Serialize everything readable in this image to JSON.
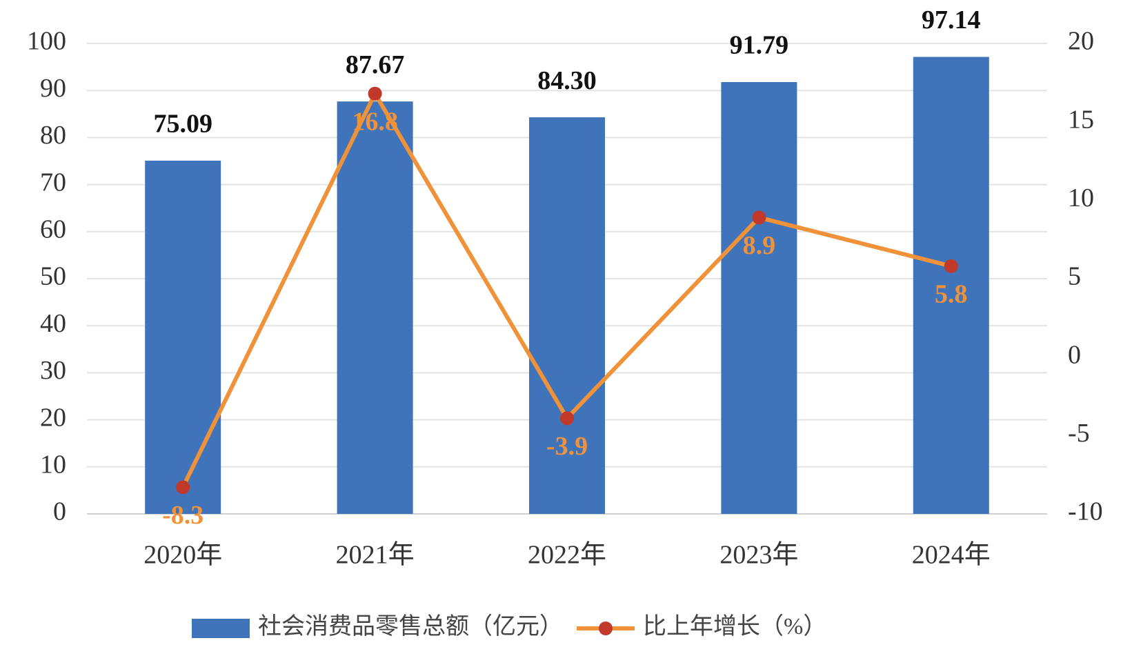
{
  "chart_data": {
    "type": "combo",
    "categories": [
      "2020年",
      "2021年",
      "2022年",
      "2023年",
      "2024年"
    ],
    "series": [
      {
        "name": "社会消费品零售总额（亿元）",
        "type": "bar",
        "color": "#3f74ba",
        "values": [
          75.09,
          87.67,
          84.3,
          91.79,
          97.14
        ],
        "value_labels": [
          "75.09",
          "87.67",
          "84.30",
          "91.79",
          "97.14"
        ]
      },
      {
        "name": "比上年增长（%）",
        "type": "line",
        "axis": "y2",
        "color": "#f0923a",
        "marker_color": "#c0392b",
        "values": [
          -8.3,
          16.8,
          -3.9,
          8.9,
          5.8
        ]
      }
    ],
    "ylim": [
      0,
      100
    ],
    "yticks": [
      0,
      10,
      20,
      30,
      40,
      50,
      60,
      70,
      80,
      90,
      100
    ],
    "y2lim": [
      -10,
      20
    ],
    "y2ticks": [
      -10,
      -5,
      0,
      5,
      10,
      15,
      20
    ],
    "grid": true,
    "legend": "bottom"
  }
}
